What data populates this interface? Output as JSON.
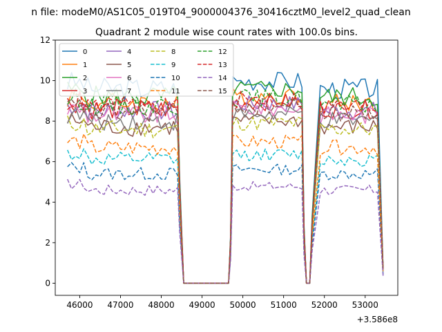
{
  "figure": {
    "suptitle": "n file: modeM0/AS1C05_019T04_9000004376_30416cztM0_level2_quad_clean",
    "title": "Quadrant 2 module wise count rates with 100.0s bins.",
    "offset_label": "+3.586e8"
  },
  "chart_data": {
    "type": "line",
    "title": "Quadrant 2 module wise count rates with 100.0s bins.",
    "xlabel": "",
    "ylabel": "",
    "x_offset": 358600000,
    "xlim": [
      45400,
      53800
    ],
    "ylim": [
      -0.6,
      12
    ],
    "xticks": [
      46000,
      47000,
      48000,
      49000,
      50000,
      51000,
      52000,
      53000
    ],
    "yticks": [
      0,
      2,
      4,
      6,
      8,
      10,
      12
    ],
    "legend": {
      "position": "top-left",
      "columns": 4
    },
    "segments": [
      [
        45700,
        48500
      ],
      [
        49700,
        51450
      ],
      [
        51900,
        53400
      ]
    ],
    "gaps": [
      [
        48500,
        48600,
        49650,
        49700
      ],
      [
        51450,
        51550,
        51650,
        51700
      ],
      [
        53400,
        53430,
        53440,
        53450
      ]
    ],
    "series": [
      {
        "name": "0",
        "color": "#1f77b4",
        "style": "solid",
        "level": 9.6
      },
      {
        "name": "1",
        "color": "#ff7f0e",
        "style": "solid",
        "level": 8.9
      },
      {
        "name": "2",
        "color": "#2ca02c",
        "style": "solid",
        "level": 9.2
      },
      {
        "name": "3",
        "color": "#d62728",
        "style": "solid",
        "level": 8.6
      },
      {
        "name": "4",
        "color": "#9467bd",
        "style": "solid",
        "level": 8.5
      },
      {
        "name": "5",
        "color": "#8c564b",
        "style": "solid",
        "level": 7.7
      },
      {
        "name": "6",
        "color": "#e377c2",
        "style": "solid",
        "level": 8.3
      },
      {
        "name": "7",
        "color": "#7f7f7f",
        "style": "solid",
        "level": 8.0
      },
      {
        "name": "8",
        "color": "#bcbd22",
        "style": "dashed",
        "level": 7.6
      },
      {
        "name": "9",
        "color": "#17becf",
        "style": "dashed",
        "level": 6.1
      },
      {
        "name": "10",
        "color": "#1f77b4",
        "style": "dashed",
        "level": 5.4
      },
      {
        "name": "11",
        "color": "#ff7f0e",
        "style": "dashed",
        "level": 6.7
      },
      {
        "name": "12",
        "color": "#2ca02c",
        "style": "dashed",
        "level": 8.8
      },
      {
        "name": "13",
        "color": "#d62728",
        "style": "dashed",
        "level": 8.7
      },
      {
        "name": "14",
        "color": "#9467bd",
        "style": "dashed",
        "level": 4.6
      },
      {
        "name": "15",
        "color": "#8c564b",
        "style": "dashed",
        "level": 8.4
      }
    ]
  }
}
